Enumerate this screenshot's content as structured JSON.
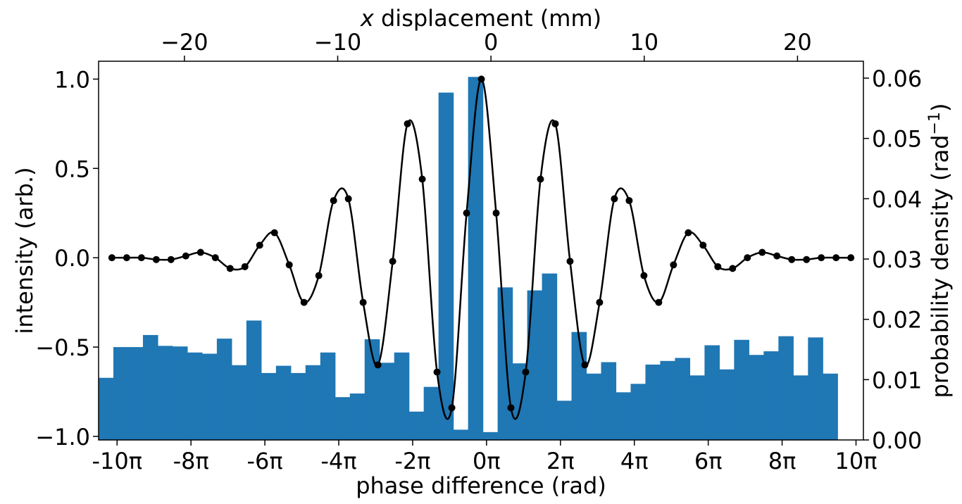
{
  "chart_data": {
    "type": "bar",
    "title": "",
    "xlabel": "phase difference (rad)",
    "ylabel_left": "intensity (arb.)",
    "ylabel_right": "probability density (rad⁻¹)",
    "xlabel_top_italic": "x",
    "xlabel_top_rest": " displacement (mm)",
    "xlim_phase_units_pi": [
      -10.5,
      10.2
    ],
    "ylim_left": [
      -1.02,
      1.1
    ],
    "ylim_right": [
      0.0,
      0.0628
    ],
    "xlim_top_mm": [
      -25.6,
      24.3
    ],
    "x_ticks_pi": [
      -10,
      -8,
      -6,
      -4,
      -2,
      0,
      2,
      4,
      6,
      8,
      10
    ],
    "x_tick_labels": [
      "-10π",
      "-8π",
      "-6π",
      "-4π",
      "-2π",
      "0π",
      "2π",
      "4π",
      "6π",
      "8π",
      "10π"
    ],
    "left_ticks": [
      -1.0,
      -0.5,
      0.0,
      0.5,
      1.0
    ],
    "left_tick_labels": [
      "−1.0",
      "−0.5",
      "0.0",
      "0.5",
      "1.0"
    ],
    "right_ticks": [
      0.0,
      0.01,
      0.02,
      0.03,
      0.04,
      0.05,
      0.06
    ],
    "right_tick_labels": [
      "0.00",
      "0.01",
      "0.02",
      "0.03",
      "0.04",
      "0.05",
      "0.06"
    ],
    "top_ticks_mm": [
      -20,
      -10,
      0,
      10,
      20
    ],
    "top_tick_labels": [
      "−20",
      "−10",
      "0",
      "10",
      "20"
    ],
    "bar_color": "#1f77b4",
    "line_color": "#000000",
    "histogram": {
      "name": "probability density",
      "bin_start_pi": -10.5,
      "bin_width_pi": 0.4,
      "values": [
        0.0103,
        0.0154,
        0.0154,
        0.0174,
        0.0156,
        0.0155,
        0.0145,
        0.0143,
        0.0168,
        0.0124,
        0.0198,
        0.0111,
        0.0123,
        0.0111,
        0.0124,
        0.0145,
        0.0071,
        0.0077,
        0.0167,
        0.0128,
        0.0145,
        0.0047,
        0.0088,
        0.0576,
        0.0017,
        0.0602,
        0.0013,
        0.0253,
        0.0127,
        0.0248,
        0.0276,
        0.0065,
        0.0179,
        0.011,
        0.0129,
        0.0079,
        0.0093,
        0.0125,
        0.0131,
        0.0136,
        0.0107,
        0.0157,
        0.0117,
        0.0166,
        0.0141,
        0.0147,
        0.0172,
        0.0107,
        0.017,
        0.011
      ]
    },
    "intensity_points": {
      "name": "intensity",
      "x_pi": [
        -10.14,
        -9.74,
        -9.34,
        -8.94,
        -8.54,
        -8.14,
        -7.74,
        -7.34,
        -6.94,
        -6.54,
        -6.14,
        -5.74,
        -5.34,
        -4.94,
        -4.54,
        -4.14,
        -3.74,
        -3.34,
        -2.94,
        -2.54,
        -2.14,
        -1.74,
        -1.34,
        -0.94,
        -0.54,
        -0.14,
        0.26,
        0.66,
        1.06,
        1.46,
        1.86,
        2.26,
        2.66,
        3.06,
        3.46,
        3.86,
        4.26,
        4.66,
        5.06,
        5.46,
        5.86,
        6.26,
        6.66,
        7.06,
        7.46,
        7.86,
        8.26,
        8.66,
        9.06,
        9.46,
        9.86
      ],
      "y": [
        0.0,
        0.0,
        0.0,
        -0.01,
        -0.01,
        0.01,
        0.03,
        0.0,
        -0.06,
        -0.05,
        0.07,
        0.14,
        -0.04,
        -0.25,
        -0.1,
        0.32,
        0.33,
        -0.25,
        -0.6,
        -0.02,
        0.75,
        0.44,
        -0.64,
        -0.84,
        0.25,
        1.0,
        0.25,
        -0.84,
        -0.64,
        0.44,
        0.75,
        -0.02,
        -0.6,
        -0.25,
        0.33,
        0.32,
        -0.1,
        -0.25,
        -0.04,
        0.14,
        0.07,
        -0.05,
        -0.06,
        0.0,
        0.03,
        0.01,
        -0.01,
        -0.01,
        0.0,
        0.0,
        0.0
      ],
      "curve_model": "y = sinc(phase / 10π)^… envelope × cos(phase) fit"
    }
  }
}
